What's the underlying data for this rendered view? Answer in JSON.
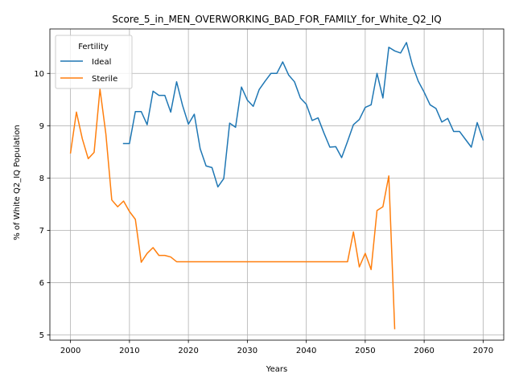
{
  "chart_data": {
    "type": "line",
    "title": "Score_5_in_MEN_OVERWORKING_BAD_FOR_FAMILY_for_White_Q2_IQ",
    "xlabel": "Years",
    "ylabel": "% of White Q2_IQ Population",
    "xlim": [
      1996.5,
      2073.5
    ],
    "ylim": [
      4.9,
      10.85
    ],
    "xticks": [
      2000,
      2010,
      2020,
      2030,
      2040,
      2050,
      2060,
      2070
    ],
    "yticks": [
      5,
      6,
      7,
      8,
      9,
      10
    ],
    "grid": true,
    "legend": {
      "title": "Fertility",
      "placement": "top-left"
    },
    "series": [
      {
        "name": "Ideal",
        "color": "#1f77b4",
        "x": [
          2009,
          2010,
          2011,
          2012,
          2013,
          2014,
          2015,
          2016,
          2017,
          2018,
          2019,
          2020,
          2021,
          2022,
          2023,
          2024,
          2025,
          2026,
          2027,
          2028,
          2029,
          2030,
          2031,
          2032,
          2033,
          2034,
          2035,
          2036,
          2037,
          2038,
          2039,
          2040,
          2041,
          2042,
          2043,
          2044,
          2045,
          2046,
          2047,
          2048,
          2049,
          2050,
          2051,
          2052,
          2053,
          2054,
          2055,
          2056,
          2057,
          2058,
          2059,
          2060,
          2061,
          2062,
          2063,
          2064,
          2065,
          2066,
          2067,
          2068,
          2069,
          2070
        ],
        "y": [
          8.66,
          8.66,
          9.27,
          9.27,
          9.02,
          9.66,
          9.58,
          9.58,
          9.26,
          9.84,
          9.39,
          9.03,
          9.22,
          8.56,
          8.23,
          8.2,
          7.83,
          7.99,
          9.05,
          8.97,
          9.74,
          9.49,
          9.37,
          9.69,
          9.85,
          10.0,
          10.0,
          10.22,
          9.97,
          9.84,
          9.53,
          9.41,
          9.1,
          9.15,
          8.86,
          8.59,
          8.6,
          8.39,
          8.7,
          9.02,
          9.12,
          9.35,
          9.4,
          10.0,
          9.53,
          10.5,
          10.43,
          10.39,
          10.59,
          10.16,
          9.85,
          9.64,
          9.4,
          9.33,
          9.07,
          9.14,
          8.89,
          8.89,
          8.74,
          8.59,
          9.06,
          8.73
        ]
      },
      {
        "name": "Sterile",
        "color": "#ff7f0e",
        "x": [
          2000,
          2001,
          2002,
          2003,
          2004,
          2005,
          2006,
          2007,
          2008,
          2009,
          2010,
          2011,
          2012,
          2013,
          2014,
          2015,
          2016,
          2017,
          2018,
          2019,
          2020,
          2021,
          2022,
          2023,
          2024,
          2025,
          2026,
          2027,
          2028,
          2029,
          2030,
          2031,
          2032,
          2033,
          2034,
          2035,
          2036,
          2037,
          2038,
          2039,
          2040,
          2041,
          2042,
          2043,
          2044,
          2045,
          2046,
          2047,
          2048,
          2049,
          2050,
          2051,
          2052,
          2053,
          2054,
          2055
        ],
        "y": [
          8.48,
          9.26,
          8.75,
          8.37,
          8.49,
          9.7,
          8.84,
          7.58,
          7.45,
          7.56,
          7.36,
          7.21,
          6.39,
          6.56,
          6.67,
          6.52,
          6.52,
          6.49,
          6.4,
          6.4,
          6.4,
          6.4,
          6.4,
          6.4,
          6.4,
          6.4,
          6.4,
          6.4,
          6.4,
          6.4,
          6.4,
          6.4,
          6.4,
          6.4,
          6.4,
          6.4,
          6.4,
          6.4,
          6.4,
          6.4,
          6.4,
          6.4,
          6.4,
          6.4,
          6.4,
          6.4,
          6.4,
          6.4,
          6.97,
          6.3,
          6.56,
          6.25,
          7.38,
          7.45,
          8.04,
          5.12
        ]
      }
    ]
  }
}
